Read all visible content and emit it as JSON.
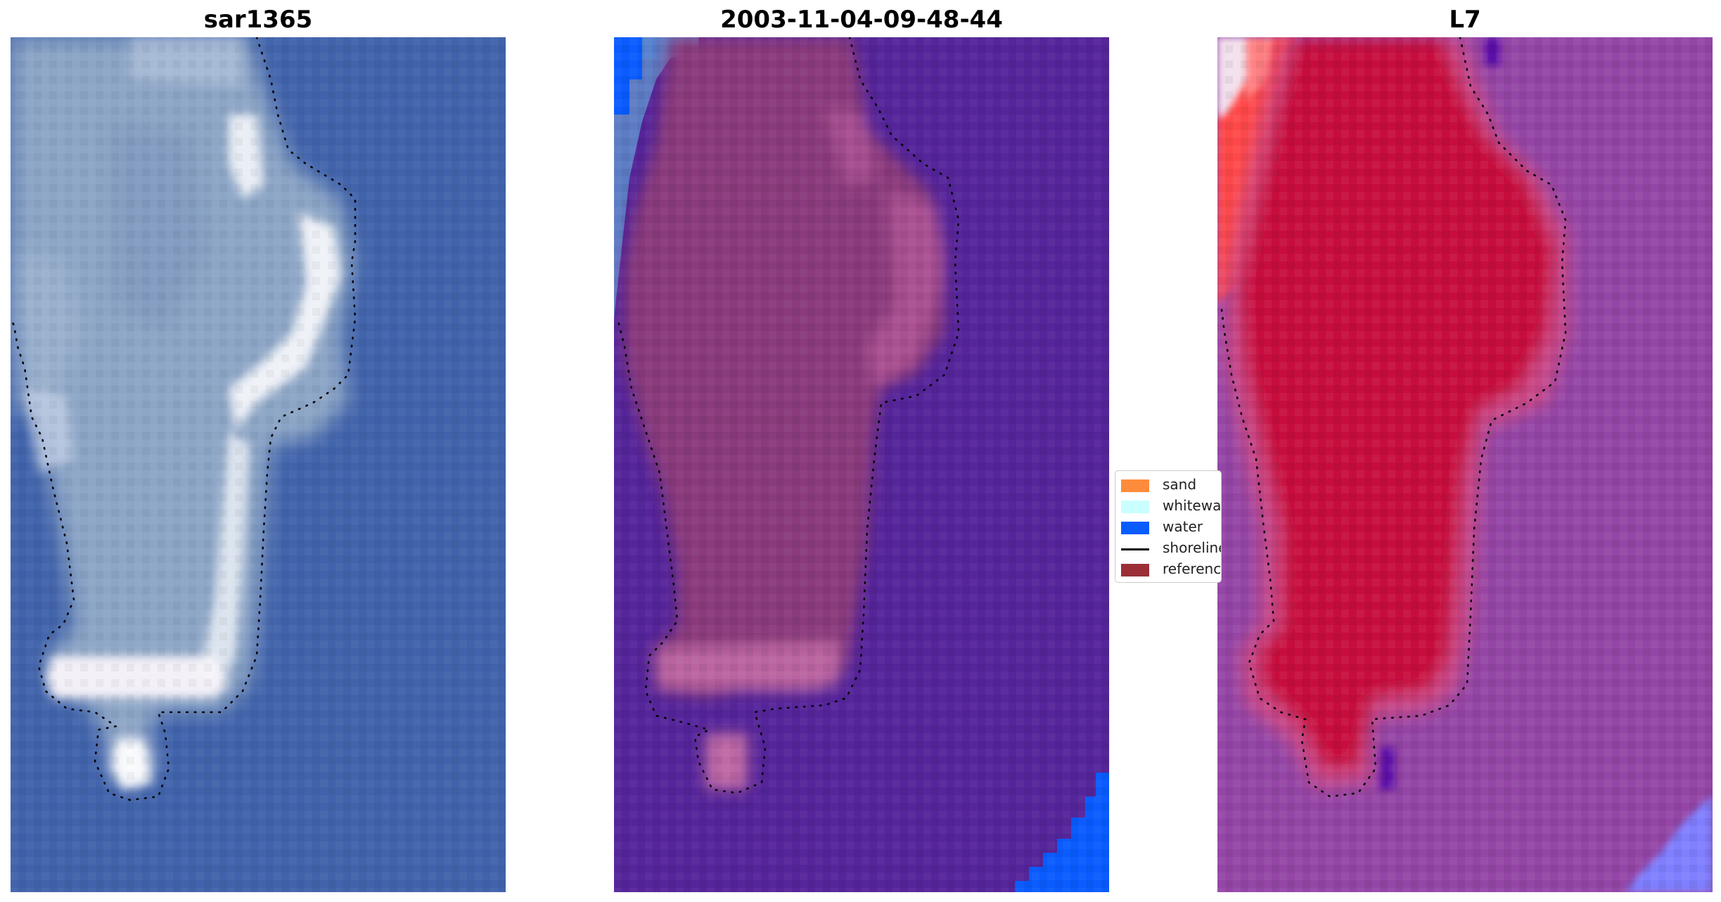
{
  "figure": {
    "panels": [
      {
        "id": "rgb",
        "title": "sar1365"
      },
      {
        "id": "classified",
        "title": "2003-11-04-09-48-44"
      },
      {
        "id": "index",
        "title": "L7"
      }
    ],
    "legend": {
      "items": [
        {
          "label": "sand",
          "color": "#ff8c3c",
          "kind": "patch"
        },
        {
          "label": "whitewater",
          "color": "#c9ffff",
          "kind": "patch"
        },
        {
          "label": "water",
          "color": "#0a5cff",
          "kind": "patch"
        },
        {
          "label": "shoreline",
          "color": "#000000",
          "kind": "line"
        },
        {
          "label": "reference",
          "color": "#9a2f38",
          "kind": "patch"
        }
      ]
    },
    "colors": {
      "rgb_water": "#3c5ea8",
      "rgb_land": "#8da6c6",
      "rgb_white": "#f4f6fa",
      "class_background": "#55259a",
      "class_island": "#8a3a7c",
      "class_island_edge": "#b45a9a",
      "class_water": "#0a5cff",
      "index_background": "#9446a6",
      "index_island": "#c70a3e",
      "index_edge": "#cf4a86",
      "index_hot": "#ff4a4a",
      "index_cold": "#7f80ff"
    }
  }
}
